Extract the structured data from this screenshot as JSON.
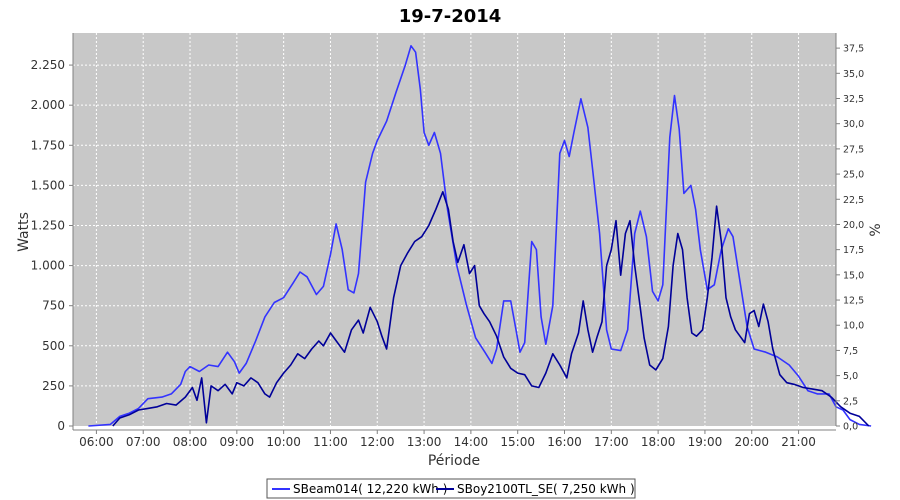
{
  "chart_data": {
    "type": "line",
    "title": "19-7-2014",
    "xlabel": "Période",
    "ylabel": "Watts",
    "y2label": "%",
    "ylim": [
      0,
      2450
    ],
    "y2lim": [
      0,
      39.0
    ],
    "xlim": [
      5.5,
      21.8
    ],
    "grid": true,
    "legend_position": "bottom",
    "x_ticks": [
      6,
      7,
      8,
      9,
      10,
      11,
      12,
      13,
      14,
      15,
      16,
      17,
      18,
      19,
      20,
      21
    ],
    "x_tick_labels": [
      "06:00",
      "07:00",
      "08:00",
      "09:00",
      "10:00",
      "11:00",
      "12:00",
      "13:00",
      "14:00",
      "15:00",
      "16:00",
      "17:00",
      "18:00",
      "19:00",
      "20:00",
      "21:00"
    ],
    "y_ticks": [
      0,
      250,
      500,
      750,
      1000,
      1250,
      1500,
      1750,
      2000,
      2250
    ],
    "y_tick_labels": [
      "0",
      "250",
      "500",
      "750",
      "1.000",
      "1.250",
      "1.500",
      "1.750",
      "2.000",
      "2.250"
    ],
    "y2_ticks": [
      0,
      2.5,
      5,
      7.5,
      10,
      12.5,
      15,
      17.5,
      20,
      22.5,
      25,
      27.5,
      30,
      32.5,
      35,
      37.5
    ],
    "y2_tick_labels": [
      "0,0",
      "2,5",
      "5,0",
      "7,5",
      "10,0",
      "12,5",
      "15,0",
      "17,5",
      "20,0",
      "22,5",
      "25,0",
      "27,5",
      "30,0",
      "32,5",
      "35,0",
      "37,5"
    ],
    "series": [
      {
        "name": "SBeam014( 12,220 kWh )",
        "color": "#3333ff",
        "points": [
          [
            5.83,
            0
          ],
          [
            6.3,
            10
          ],
          [
            6.5,
            60
          ],
          [
            6.7,
            80
          ],
          [
            6.9,
            110
          ],
          [
            7.1,
            170
          ],
          [
            7.4,
            180
          ],
          [
            7.6,
            200
          ],
          [
            7.8,
            260
          ],
          [
            7.9,
            340
          ],
          [
            8.0,
            370
          ],
          [
            8.2,
            340
          ],
          [
            8.4,
            380
          ],
          [
            8.6,
            370
          ],
          [
            8.8,
            460
          ],
          [
            8.95,
            400
          ],
          [
            9.05,
            330
          ],
          [
            9.2,
            390
          ],
          [
            9.4,
            530
          ],
          [
            9.6,
            680
          ],
          [
            9.8,
            770
          ],
          [
            10.0,
            800
          ],
          [
            10.2,
            890
          ],
          [
            10.35,
            960
          ],
          [
            10.5,
            930
          ],
          [
            10.7,
            820
          ],
          [
            10.85,
            870
          ],
          [
            11.0,
            1070
          ],
          [
            11.12,
            1260
          ],
          [
            11.25,
            1100
          ],
          [
            11.38,
            850
          ],
          [
            11.5,
            830
          ],
          [
            11.6,
            950
          ],
          [
            11.75,
            1520
          ],
          [
            11.9,
            1700
          ],
          [
            12.0,
            1780
          ],
          [
            12.2,
            1900
          ],
          [
            12.4,
            2080
          ],
          [
            12.6,
            2250
          ],
          [
            12.72,
            2370
          ],
          [
            12.82,
            2330
          ],
          [
            12.92,
            2100
          ],
          [
            13.0,
            1830
          ],
          [
            13.1,
            1750
          ],
          [
            13.22,
            1830
          ],
          [
            13.35,
            1700
          ],
          [
            13.5,
            1350
          ],
          [
            13.7,
            1000
          ],
          [
            13.9,
            760
          ],
          [
            14.1,
            550
          ],
          [
            14.3,
            460
          ],
          [
            14.45,
            390
          ],
          [
            14.55,
            480
          ],
          [
            14.7,
            780
          ],
          [
            14.85,
            780
          ],
          [
            14.95,
            620
          ],
          [
            15.05,
            460
          ],
          [
            15.15,
            520
          ],
          [
            15.3,
            1150
          ],
          [
            15.4,
            1100
          ],
          [
            15.5,
            680
          ],
          [
            15.6,
            510
          ],
          [
            15.75,
            750
          ],
          [
            15.9,
            1700
          ],
          [
            16.0,
            1780
          ],
          [
            16.1,
            1680
          ],
          [
            16.2,
            1830
          ],
          [
            16.35,
            2040
          ],
          [
            16.5,
            1860
          ],
          [
            16.6,
            1600
          ],
          [
            16.75,
            1200
          ],
          [
            16.9,
            600
          ],
          [
            17.0,
            480
          ],
          [
            17.2,
            470
          ],
          [
            17.35,
            600
          ],
          [
            17.5,
            1200
          ],
          [
            17.62,
            1340
          ],
          [
            17.75,
            1180
          ],
          [
            17.88,
            840
          ],
          [
            18.0,
            780
          ],
          [
            18.1,
            880
          ],
          [
            18.25,
            1800
          ],
          [
            18.35,
            2060
          ],
          [
            18.45,
            1850
          ],
          [
            18.55,
            1450
          ],
          [
            18.7,
            1500
          ],
          [
            18.8,
            1350
          ],
          [
            18.9,
            1100
          ],
          [
            19.05,
            850
          ],
          [
            19.2,
            880
          ],
          [
            19.35,
            1100
          ],
          [
            19.5,
            1230
          ],
          [
            19.6,
            1180
          ],
          [
            19.75,
            900
          ],
          [
            19.9,
            620
          ],
          [
            20.05,
            480
          ],
          [
            20.3,
            460
          ],
          [
            20.55,
            430
          ],
          [
            20.8,
            380
          ],
          [
            21.0,
            310
          ],
          [
            21.2,
            220
          ],
          [
            21.4,
            200
          ],
          [
            21.65,
            200
          ],
          [
            21.8,
            120
          ],
          [
            21.95,
            100
          ],
          [
            22.1,
            40
          ],
          [
            22.3,
            10
          ],
          [
            22.55,
            0
          ]
        ]
      },
      {
        "name": "SBoy2100TL_SE( 7,250 kWh )",
        "color": "#000099",
        "points": [
          [
            6.35,
            0
          ],
          [
            6.5,
            50
          ],
          [
            6.7,
            70
          ],
          [
            6.9,
            100
          ],
          [
            7.1,
            110
          ],
          [
            7.3,
            120
          ],
          [
            7.5,
            140
          ],
          [
            7.7,
            130
          ],
          [
            7.9,
            180
          ],
          [
            8.05,
            240
          ],
          [
            8.15,
            160
          ],
          [
            8.25,
            300
          ],
          [
            8.35,
            20
          ],
          [
            8.45,
            250
          ],
          [
            8.6,
            220
          ],
          [
            8.75,
            260
          ],
          [
            8.9,
            200
          ],
          [
            9.0,
            270
          ],
          [
            9.15,
            250
          ],
          [
            9.3,
            300
          ],
          [
            9.45,
            270
          ],
          [
            9.6,
            200
          ],
          [
            9.7,
            180
          ],
          [
            9.85,
            270
          ],
          [
            10.0,
            330
          ],
          [
            10.15,
            380
          ],
          [
            10.3,
            450
          ],
          [
            10.45,
            420
          ],
          [
            10.6,
            480
          ],
          [
            10.75,
            530
          ],
          [
            10.85,
            500
          ],
          [
            11.0,
            580
          ],
          [
            11.15,
            520
          ],
          [
            11.3,
            460
          ],
          [
            11.45,
            600
          ],
          [
            11.6,
            660
          ],
          [
            11.7,
            580
          ],
          [
            11.85,
            740
          ],
          [
            12.0,
            650
          ],
          [
            12.1,
            560
          ],
          [
            12.2,
            480
          ],
          [
            12.35,
            800
          ],
          [
            12.5,
            1000
          ],
          [
            12.65,
            1080
          ],
          [
            12.8,
            1150
          ],
          [
            12.95,
            1180
          ],
          [
            13.1,
            1250
          ],
          [
            13.25,
            1350
          ],
          [
            13.4,
            1460
          ],
          [
            13.52,
            1350
          ],
          [
            13.62,
            1150
          ],
          [
            13.72,
            1020
          ],
          [
            13.85,
            1130
          ],
          [
            13.97,
            950
          ],
          [
            14.08,
            1000
          ],
          [
            14.18,
            750
          ],
          [
            14.28,
            700
          ],
          [
            14.4,
            650
          ],
          [
            14.55,
            560
          ],
          [
            14.7,
            430
          ],
          [
            14.85,
            360
          ],
          [
            15.0,
            330
          ],
          [
            15.15,
            320
          ],
          [
            15.3,
            250
          ],
          [
            15.45,
            240
          ],
          [
            15.6,
            330
          ],
          [
            15.75,
            450
          ],
          [
            15.9,
            380
          ],
          [
            16.05,
            300
          ],
          [
            16.15,
            450
          ],
          [
            16.3,
            580
          ],
          [
            16.4,
            780
          ],
          [
            16.5,
            600
          ],
          [
            16.6,
            460
          ],
          [
            16.7,
            560
          ],
          [
            16.8,
            650
          ],
          [
            16.9,
            1000
          ],
          [
            17.0,
            1100
          ],
          [
            17.1,
            1280
          ],
          [
            17.2,
            940
          ],
          [
            17.3,
            1200
          ],
          [
            17.4,
            1280
          ],
          [
            17.5,
            1000
          ],
          [
            17.6,
            780
          ],
          [
            17.7,
            550
          ],
          [
            17.82,
            380
          ],
          [
            17.95,
            350
          ],
          [
            18.1,
            420
          ],
          [
            18.22,
            620
          ],
          [
            18.32,
            1000
          ],
          [
            18.42,
            1200
          ],
          [
            18.52,
            1100
          ],
          [
            18.62,
            800
          ],
          [
            18.72,
            580
          ],
          [
            18.82,
            560
          ],
          [
            18.95,
            600
          ],
          [
            19.05,
            800
          ],
          [
            19.15,
            1050
          ],
          [
            19.25,
            1370
          ],
          [
            19.35,
            1150
          ],
          [
            19.45,
            800
          ],
          [
            19.55,
            680
          ],
          [
            19.65,
            600
          ],
          [
            19.75,
            560
          ],
          [
            19.85,
            520
          ],
          [
            19.95,
            700
          ],
          [
            20.05,
            720
          ],
          [
            20.15,
            620
          ],
          [
            20.25,
            760
          ],
          [
            20.35,
            650
          ],
          [
            20.45,
            480
          ],
          [
            20.6,
            320
          ],
          [
            20.75,
            270
          ],
          [
            20.9,
            260
          ],
          [
            21.1,
            240
          ],
          [
            21.3,
            230
          ],
          [
            21.5,
            220
          ],
          [
            21.7,
            180
          ],
          [
            21.9,
            120
          ],
          [
            22.1,
            80
          ],
          [
            22.3,
            60
          ],
          [
            22.5,
            0
          ]
        ]
      }
    ]
  }
}
